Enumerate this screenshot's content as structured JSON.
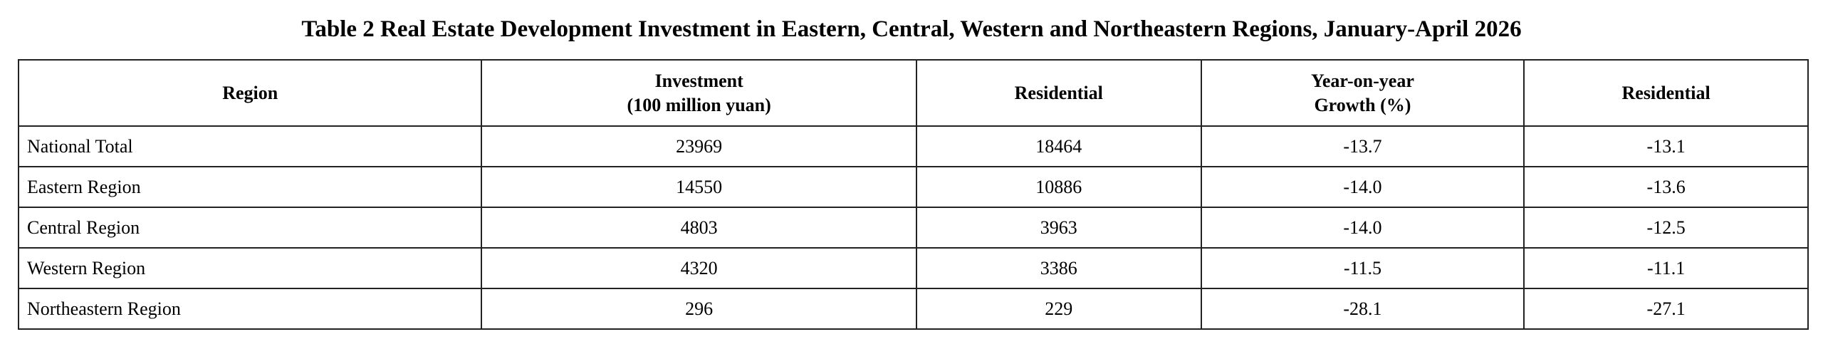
{
  "title": "Table 2 Real Estate Development Investment in Eastern, Central, Western and Northeastern Regions, January-April 2026",
  "table": {
    "header": [
      [
        "Region"
      ],
      [
        "Investment",
        "(100 million yuan)"
      ],
      [
        "Residential"
      ],
      [
        "Year-on-year",
        "Growth (%)"
      ],
      [
        "Residential"
      ]
    ],
    "rows": [
      [
        "National Total",
        "23969",
        "18464",
        "-13.7",
        "-13.1"
      ],
      [
        "Eastern Region",
        "14550",
        "10886",
        "-14.0",
        "-13.6"
      ],
      [
        "Central Region",
        "4803",
        "3963",
        "-14.0",
        "-12.5"
      ],
      [
        "Western Region",
        "4320",
        "3386",
        "-11.5",
        "-11.1"
      ],
      [
        "Northeastern Region",
        "296",
        "229",
        "-28.1",
        "-27.1"
      ]
    ]
  }
}
